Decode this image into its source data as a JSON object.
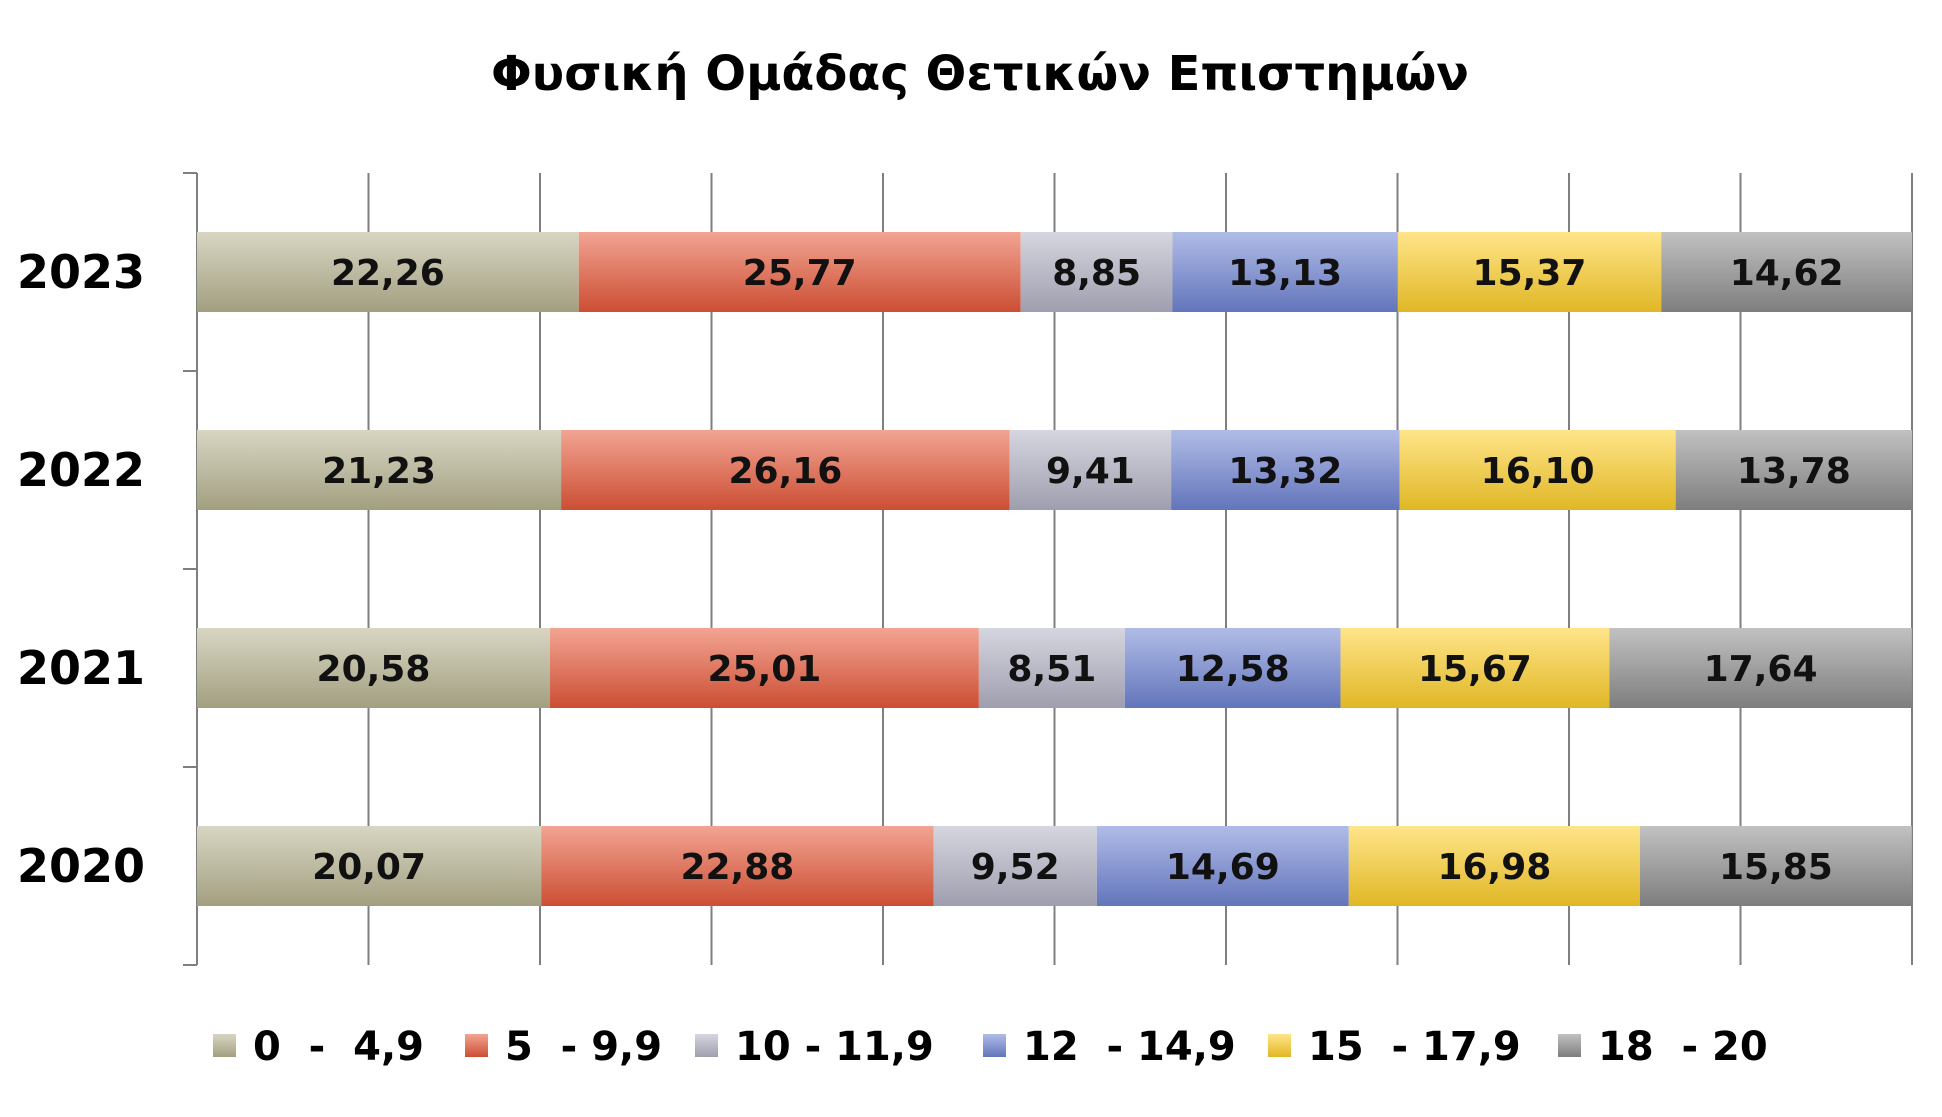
{
  "chart_data": {
    "type": "bar",
    "orientation": "horizontal",
    "stacked": true,
    "title": "Φυσική Ομάδας Θετικών Επιστημών",
    "categories": [
      "2023",
      "2022",
      "2021",
      "2020"
    ],
    "xlim": [
      0,
      100
    ],
    "grid": true,
    "legend_position": "bottom",
    "series": [
      {
        "name": "0  -  4,9",
        "values": [
          22.26,
          21.23,
          20.58,
          20.07
        ],
        "labels": [
          "22,26",
          "21,23",
          "20,58",
          "20,07"
        ],
        "color": "#b8b592"
      },
      {
        "name": "5  - 9,9",
        "values": [
          25.77,
          26.16,
          25.01,
          22.88
        ],
        "labels": [
          "25,77",
          "26,16",
          "25,01",
          "22,88"
        ],
        "color": "#e8593a"
      },
      {
        "name": "10 - 11,9",
        "values": [
          8.85,
          9.41,
          8.51,
          9.52
        ],
        "labels": [
          "8,85",
          "9,41",
          "8,51",
          "9,52"
        ],
        "color": "#b4b4c6"
      },
      {
        "name": "12  - 14,9",
        "values": [
          13.13,
          13.32,
          12.58,
          14.69
        ],
        "labels": [
          "13,13",
          "13,32",
          "12,58",
          "14,69"
        ],
        "color": "#7085d4"
      },
      {
        "name": "15  - 17,9",
        "values": [
          15.37,
          16.1,
          15.67,
          16.98
        ],
        "labels": [
          "15,37",
          "16,10",
          "15,67",
          "16,98"
        ],
        "color": "#ffd02a"
      },
      {
        "name": "18  - 20",
        "values": [
          14.62,
          13.78,
          17.64,
          15.85
        ],
        "labels": [
          "14,62",
          "13,78",
          "17,64",
          "15,85"
        ],
        "color": "#8f8f8f"
      }
    ]
  }
}
